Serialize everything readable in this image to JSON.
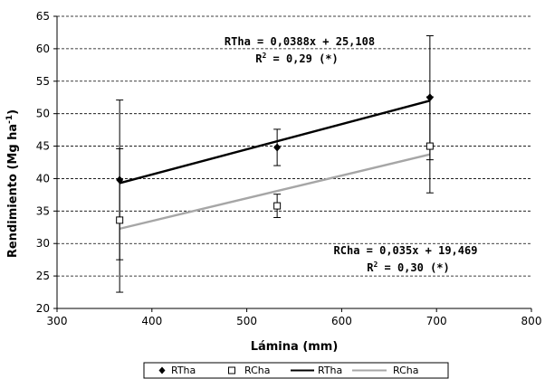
{
  "chart_data": {
    "type": "scatter",
    "xlabel": "Lámina (mm)",
    "ylabel_main": "Rendimiento (Mg ha",
    "ylabel_sup": "-1",
    "ylabel_close": ")",
    "xlim": [
      300,
      800
    ],
    "ylim": [
      20,
      65
    ],
    "x_ticks": [
      300,
      400,
      500,
      600,
      700,
      800
    ],
    "y_ticks": [
      20,
      25,
      30,
      35,
      40,
      45,
      50,
      55,
      60,
      65
    ],
    "grid": "horizontal dashed",
    "legend_position": "bottom",
    "series": [
      {
        "name": "RTha",
        "marker": "diamond",
        "color": "#000000",
        "points": [
          {
            "x": 366,
            "y": 39.8,
            "err_low": 27.5,
            "err_high": 52.1
          },
          {
            "x": 532,
            "y": 44.8,
            "err_low": 42.0,
            "err_high": 47.6
          },
          {
            "x": 693,
            "y": 52.5,
            "err_low": 42.9,
            "err_high": 62.0
          }
        ]
      },
      {
        "name": "RCha",
        "marker": "square-open",
        "color": "#000000",
        "points": [
          {
            "x": 366,
            "y": 33.6,
            "err_low": 22.5,
            "err_high": 44.6
          },
          {
            "x": 532,
            "y": 35.8,
            "err_low": 34.0,
            "err_high": 37.6
          },
          {
            "x": 693,
            "y": 45.0,
            "err_low": 37.8,
            "err_high": 52.6
          }
        ]
      }
    ],
    "trendlines": [
      {
        "name": "RTha",
        "slope": 0.0388,
        "intercept": 25.108,
        "x_range": [
          366,
          693
        ],
        "color": "#000000"
      },
      {
        "name": "RCha",
        "slope": 0.035,
        "intercept": 19.469,
        "x_range": [
          366,
          693
        ],
        "color": "#a6a6a6"
      }
    ],
    "annotations": [
      {
        "id": "rtha_eq",
        "text": "RTha = 0,0388x + 25,108"
      },
      {
        "id": "rtha_r2_pre",
        "text": "R"
      },
      {
        "id": "rtha_r2_sup",
        "text": "2"
      },
      {
        "id": "rtha_r2_post",
        "text": " = 0,29 (*)"
      },
      {
        "id": "rcha_eq",
        "text": "RCha = 0,035x + 19,469"
      },
      {
        "id": "rcha_r2_pre",
        "text": "R"
      },
      {
        "id": "rcha_r2_sup",
        "text": "2"
      },
      {
        "id": "rcha_r2_post",
        "text": " = 0,30 (*)"
      }
    ],
    "legend": [
      {
        "label": "RTha",
        "kind": "diamond"
      },
      {
        "label": "RCha",
        "kind": "square-open"
      },
      {
        "label": "RTha",
        "kind": "line",
        "color": "#000000"
      },
      {
        "label": "RCha",
        "kind": "line",
        "color": "#a6a6a6"
      }
    ]
  }
}
